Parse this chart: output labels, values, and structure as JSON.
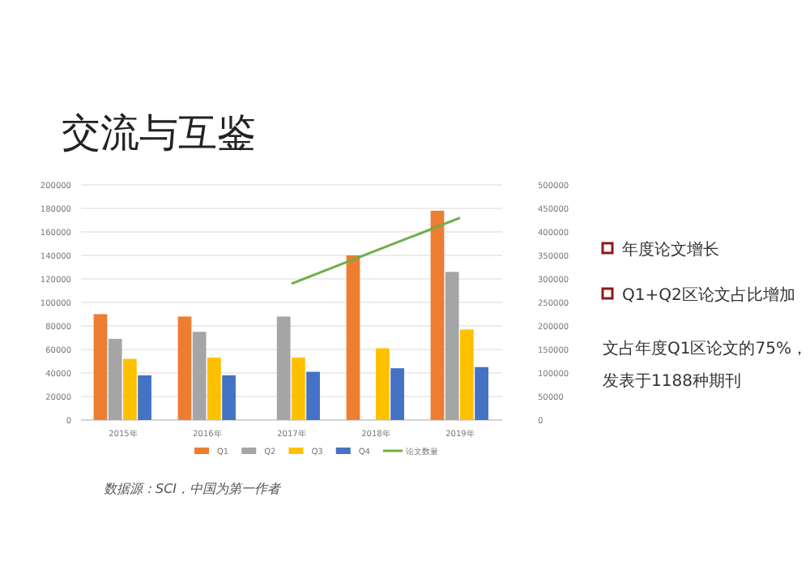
{
  "chart_data": {
    "type": "bar",
    "title": "交流与互鉴",
    "categories": [
      "2015年",
      "2016年",
      "2017年",
      "2018年",
      "2019年"
    ],
    "series": [
      {
        "name": "Q1",
        "color": "#ed7d31",
        "values": [
          90000,
          88000,
          null,
          140000,
          178000
        ]
      },
      {
        "name": "Q2",
        "color": "#a5a5a5",
        "values": [
          69000,
          75000,
          88000,
          null,
          126000
        ]
      },
      {
        "name": "Q3",
        "color": "#ffc000",
        "values": [
          52000,
          53000,
          53000,
          61000,
          77000
        ]
      },
      {
        "name": "Q4",
        "color": "#4472c4",
        "values": [
          38000,
          38000,
          41000,
          44000,
          45000
        ]
      },
      {
        "name": "论文数量",
        "color": "#70ad47",
        "type": "line",
        "axis": "y2",
        "values": [
          null,
          null,
          290000,
          360000,
          430000
        ]
      }
    ],
    "ylim": [
      0,
      200000
    ],
    "yticks": [
      0,
      20000,
      40000,
      60000,
      80000,
      100000,
      120000,
      140000,
      160000,
      180000,
      200000
    ],
    "y2lim": [
      0,
      500000
    ],
    "y2ticks": [
      0,
      50000,
      100000,
      150000,
      200000,
      250000,
      300000,
      350000,
      400000,
      450000,
      500000
    ],
    "grid": "y",
    "legend": "bottom",
    "annotations": [
      "年度论文增长",
      "Q1+Q2区论文占比增加",
      "文占年度Q1区论文的75%，",
      "发表于1188种期刊",
      "数据源：SCI，中国为第一作者"
    ]
  }
}
